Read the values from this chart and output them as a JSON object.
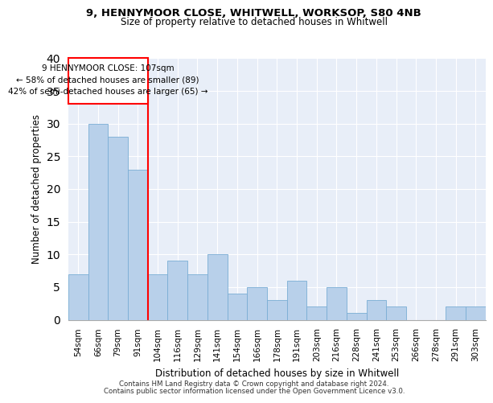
{
  "title1": "9, HENNYMOOR CLOSE, WHITWELL, WORKSOP, S80 4NB",
  "title2": "Size of property relative to detached houses in Whitwell",
  "xlabel": "Distribution of detached houses by size in Whitwell",
  "ylabel": "Number of detached properties",
  "categories": [
    "54sqm",
    "66sqm",
    "79sqm",
    "91sqm",
    "104sqm",
    "116sqm",
    "129sqm",
    "141sqm",
    "154sqm",
    "166sqm",
    "178sqm",
    "191sqm",
    "203sqm",
    "216sqm",
    "228sqm",
    "241sqm",
    "253sqm",
    "266sqm",
    "278sqm",
    "291sqm",
    "303sqm"
  ],
  "values": [
    7,
    30,
    28,
    23,
    7,
    9,
    7,
    10,
    4,
    5,
    3,
    6,
    2,
    5,
    1,
    3,
    2,
    0,
    0,
    2,
    2
  ],
  "bar_color": "#b8d0ea",
  "bar_edge_color": "#7aadd4",
  "annotation_line1": "9 HENNYMOOR CLOSE: 107sqm",
  "annotation_line2": "← 58% of detached houses are smaller (89)",
  "annotation_line3": "42% of semi-detached houses are larger (65) →",
  "vline_color": "red",
  "ylim": [
    0,
    40
  ],
  "yticks": [
    0,
    5,
    10,
    15,
    20,
    25,
    30,
    35,
    40
  ],
  "footer1": "Contains HM Land Registry data © Crown copyright and database right 2024.",
  "footer2": "Contains public sector information licensed under the Open Government Licence v3.0.",
  "plot_bg_color": "#e8eef8"
}
